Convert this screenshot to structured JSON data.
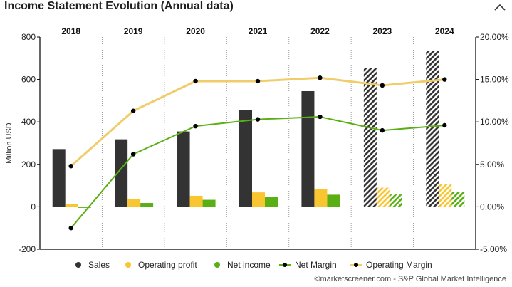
{
  "header": {
    "title": "Income Statement Evolution (Annual data)",
    "collapse_icon": "chevron-up-icon"
  },
  "footer": {
    "copyright": "©marketscreener.com - S&P Global Market Intelligence"
  },
  "colors": {
    "sales": "#333333",
    "operating_profit": "#f9c531",
    "net_income": "#5aaf14",
    "net_margin_line": "#5aaf14",
    "operating_margin_line": "#f0cc6a",
    "marker": "#000000"
  },
  "chart_data": {
    "type": "bar",
    "title": "Income Statement Evolution (Annual data)",
    "ylabel": "Million USD",
    "categories": [
      "2018",
      "2019",
      "2020",
      "2021",
      "2022",
      "2023",
      "2024"
    ],
    "estimated_categories": [
      "2023",
      "2024"
    ],
    "ylim": [
      -200,
      800
    ],
    "yticks": [
      "-200",
      "0",
      "200",
      "400",
      "600",
      "800"
    ],
    "y2lim": [
      -5,
      20
    ],
    "y2ticks": [
      "-5.00%",
      "0.00%",
      "5.00%",
      "10.00%",
      "15.00%",
      "20.00%"
    ],
    "grid": "vertical dotted separators between years",
    "legend_position": "bottom",
    "series": [
      {
        "name": "Sales",
        "kind": "bar",
        "axis": "left",
        "values": [
          272,
          318,
          355,
          457,
          545,
          655,
          733
        ]
      },
      {
        "name": "Operating profit",
        "kind": "bar",
        "axis": "left",
        "values": [
          12,
          35,
          52,
          68,
          82,
          90,
          107
        ]
      },
      {
        "name": "Net income",
        "kind": "bar",
        "axis": "left",
        "values": [
          -5,
          18,
          33,
          45,
          57,
          58,
          70
        ]
      },
      {
        "name": "Net Margin",
        "kind": "line",
        "axis": "right",
        "values": [
          -2.5,
          6.2,
          9.5,
          10.3,
          10.6,
          9.0,
          9.6
        ]
      },
      {
        "name": "Operating Margin",
        "kind": "line",
        "axis": "right",
        "values": [
          4.8,
          11.3,
          14.8,
          14.8,
          15.2,
          14.3,
          15.0
        ]
      }
    ]
  }
}
